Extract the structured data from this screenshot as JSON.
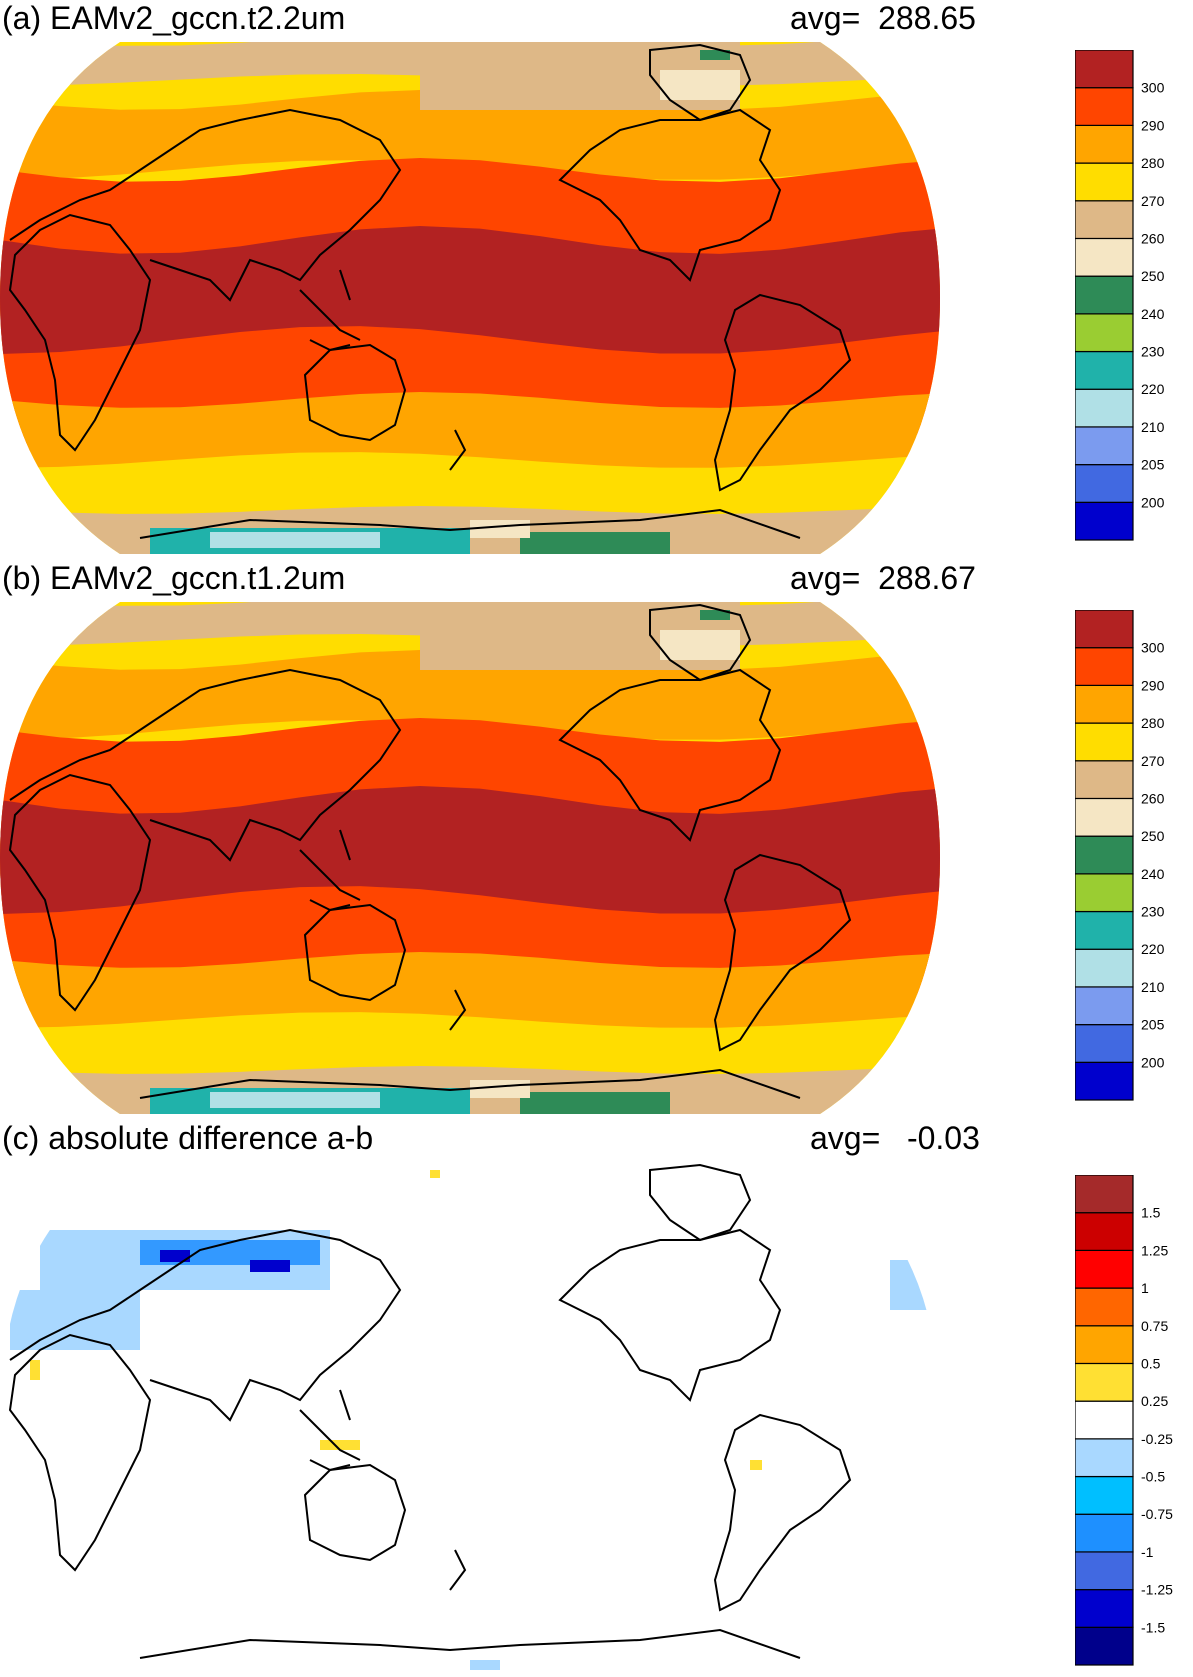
{
  "panels": [
    {
      "id": "a",
      "title": "(a) EAMv2_gccn.t2.2um",
      "avg_label": "avg=",
      "avg_value": "288.65",
      "legend": {
        "levels": [
          "200",
          "205",
          "210",
          "220",
          "230",
          "240",
          "250",
          "260",
          "270",
          "280",
          "290",
          "300"
        ],
        "colors": [
          "#0000cd",
          "#4169e1",
          "#7b9bef",
          "#b0e0e6",
          "#20b2aa",
          "#9acd32",
          "#2e8b57",
          "#f5e6c4",
          "#deb887",
          "#ffdd00",
          "#ffa500",
          "#ff4500",
          "#b22222"
        ]
      }
    },
    {
      "id": "b",
      "title": "(b) EAMv2_gccn.t1.2um",
      "avg_label": "avg=",
      "avg_value": "288.67",
      "legend": {
        "levels": [
          "200",
          "205",
          "210",
          "220",
          "230",
          "240",
          "250",
          "260",
          "270",
          "280",
          "290",
          "300"
        ],
        "colors": [
          "#0000cd",
          "#4169e1",
          "#7b9bef",
          "#b0e0e6",
          "#20b2aa",
          "#9acd32",
          "#2e8b57",
          "#f5e6c4",
          "#deb887",
          "#ffdd00",
          "#ffa500",
          "#ff4500",
          "#b22222"
        ]
      }
    },
    {
      "id": "c",
      "title": "(c) absolute difference a-b",
      "avg_label": "avg=",
      "avg_value": "-0.03",
      "legend": {
        "levels": [
          "-1.5",
          "-1.25",
          "-1",
          "-0.75",
          "-0.5",
          "-0.25",
          "0.25",
          "0.5",
          "0.75",
          "1",
          "1.25",
          "1.5"
        ],
        "colors": [
          "#00008b",
          "#0000cd",
          "#4169e1",
          "#1e90ff",
          "#00bfff",
          "#a9d8ff",
          "#ffffff",
          "#ffe033",
          "#ffa500",
          "#ff6600",
          "#ff0000",
          "#cc0000",
          "#a52a2a"
        ]
      }
    }
  ],
  "palette": {
    "ocean_warm": "#b22222",
    "ocean_mid": "#ff4500",
    "ocean_cool": "#ffa500",
    "band_yellow": "#ffdd00",
    "band_tan": "#deb887",
    "band_cream": "#f5e6c4",
    "ant_green": "#2e8b57",
    "ant_lime": "#9acd32",
    "ant_teal": "#20b2aa",
    "ant_pale": "#b0e0e6",
    "diff_blue_light": "#a9d8ff",
    "diff_blue_mid": "#3399ff",
    "diff_blue_dark": "#0000cd",
    "diff_yellow": "#ffe033",
    "coast": "#000000"
  }
}
